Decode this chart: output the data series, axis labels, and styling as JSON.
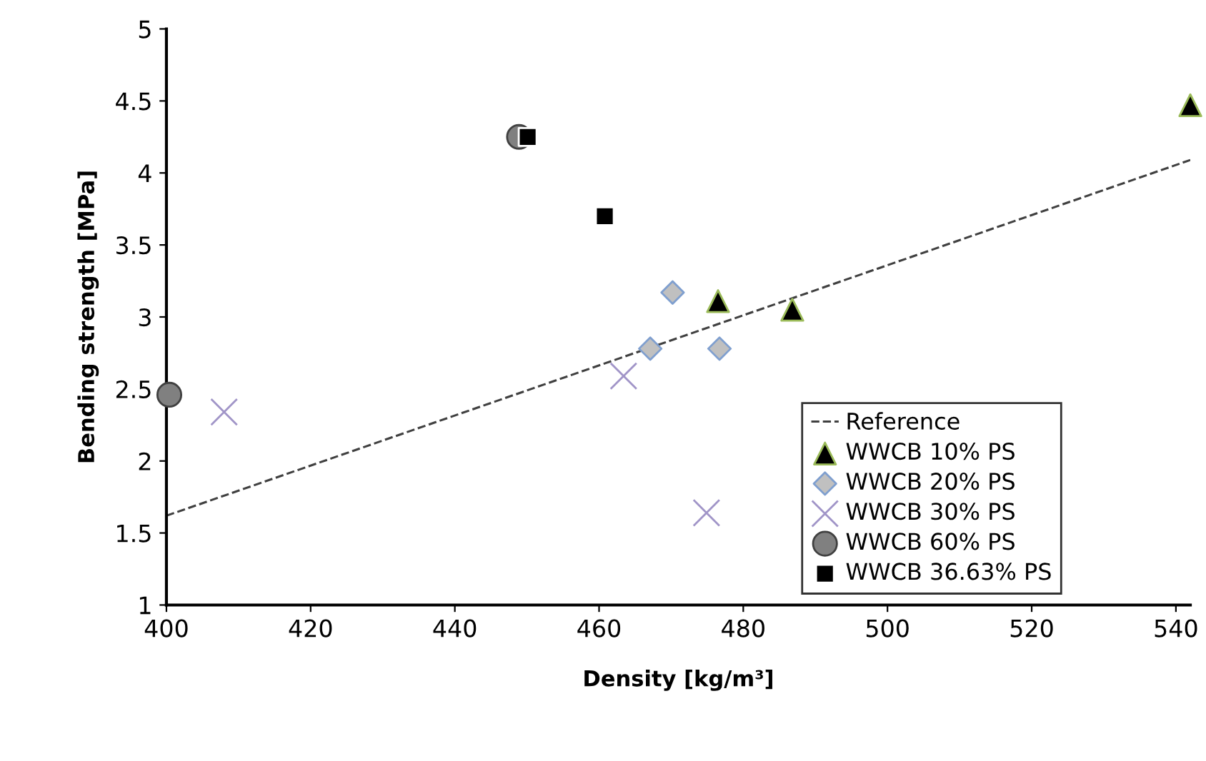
{
  "chart_data": {
    "type": "scatter",
    "xlabel": "Density [kg/m³]",
    "ylabel": "Bending strength [MPa]",
    "xlim": [
      400,
      542
    ],
    "xticks": [
      400,
      420,
      440,
      460,
      480,
      500,
      520,
      540
    ],
    "ylim": [
      1,
      5
    ],
    "yticks": [
      1,
      1.5,
      2,
      2.5,
      3,
      3.5,
      4,
      4.5,
      5
    ],
    "grid": false,
    "legend": "bottom right",
    "series": [
      {
        "name": "Reference",
        "type": "line",
        "line_style": "dashed",
        "marker": "none",
        "color": "#404040",
        "x": [
          400,
          542
        ],
        "values": [
          1.62,
          4.09
        ]
      },
      {
        "name": "WWCB 10% PS",
        "marker": "triangle",
        "color": "#000000",
        "x": [
          476.5,
          486.8,
          542
        ],
        "values": [
          3.11,
          3.05,
          4.47
        ]
      },
      {
        "name": "WWCB 20% PS",
        "marker": "diamond",
        "color": "#c0c0c0",
        "x": [
          467.1,
          470.2,
          476.7
        ],
        "values": [
          2.78,
          3.17,
          2.78
        ]
      },
      {
        "name": "WWCB 30% PS",
        "marker": "cross",
        "color": "#a195c8",
        "x": [
          408,
          463.4,
          474.9
        ],
        "values": [
          2.34,
          2.59,
          1.64
        ]
      },
      {
        "name": "WWCB 60% PS",
        "marker": "circle",
        "color": "#808080",
        "x": [
          400.4,
          448.9
        ],
        "values": [
          2.46,
          4.25
        ]
      },
      {
        "name": "WWCB 36.63% PS",
        "marker": "square",
        "color": "#000000",
        "x": [
          450.1,
          460.8
        ],
        "values": [
          4.25,
          3.7
        ]
      }
    ]
  }
}
